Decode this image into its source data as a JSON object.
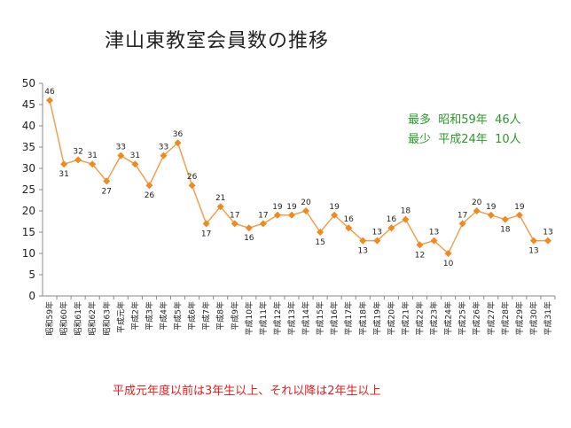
{
  "title": "津山東教室会員数の推移",
  "note": "平成元年度以前は3年生以上、それ以降は2年生以上",
  "annotations": [
    "最多  昭和59年  46人",
    "最少  平成24年  10人"
  ],
  "colors": {
    "line": "#f0a050",
    "marker": "#f08a20",
    "annotation": "#2a9a2a",
    "note": "#e02020"
  },
  "chart_data": {
    "type": "line",
    "title": "津山東教室会員数の推移",
    "ylim": [
      0,
      50
    ],
    "yticks": [
      0,
      5,
      10,
      15,
      20,
      25,
      30,
      35,
      40,
      45,
      50
    ],
    "grid": false,
    "legend": "none",
    "categories": [
      "昭和59年",
      "昭和60年",
      "昭和61年",
      "昭和62年",
      "昭和63年",
      "平成元年",
      "平成2年",
      "平成3年",
      "平成4年",
      "平成5年",
      "平成6年",
      "平成7年",
      "平成8年",
      "平成9年",
      "平成10年",
      "平成11年",
      "平成12年",
      "平成13年",
      "平成14年",
      "平成15年",
      "平成16年",
      "平成17年",
      "平成18年",
      "平成19年",
      "平成20年",
      "平成21年",
      "平成22年",
      "平成23年",
      "平成24年",
      "平成25年",
      "平成26年",
      "平成27年",
      "平成28年",
      "平成29年",
      "平成30年",
      "平成31年"
    ],
    "values": [
      46,
      31,
      32,
      31,
      27,
      33,
      31,
      26,
      33,
      36,
      26,
      17,
      21,
      17,
      16,
      17,
      19,
      19,
      20,
      15,
      19,
      16,
      13,
      13,
      16,
      18,
      12,
      13,
      10,
      17,
      20,
      19,
      18,
      19,
      13,
      13
    ]
  }
}
